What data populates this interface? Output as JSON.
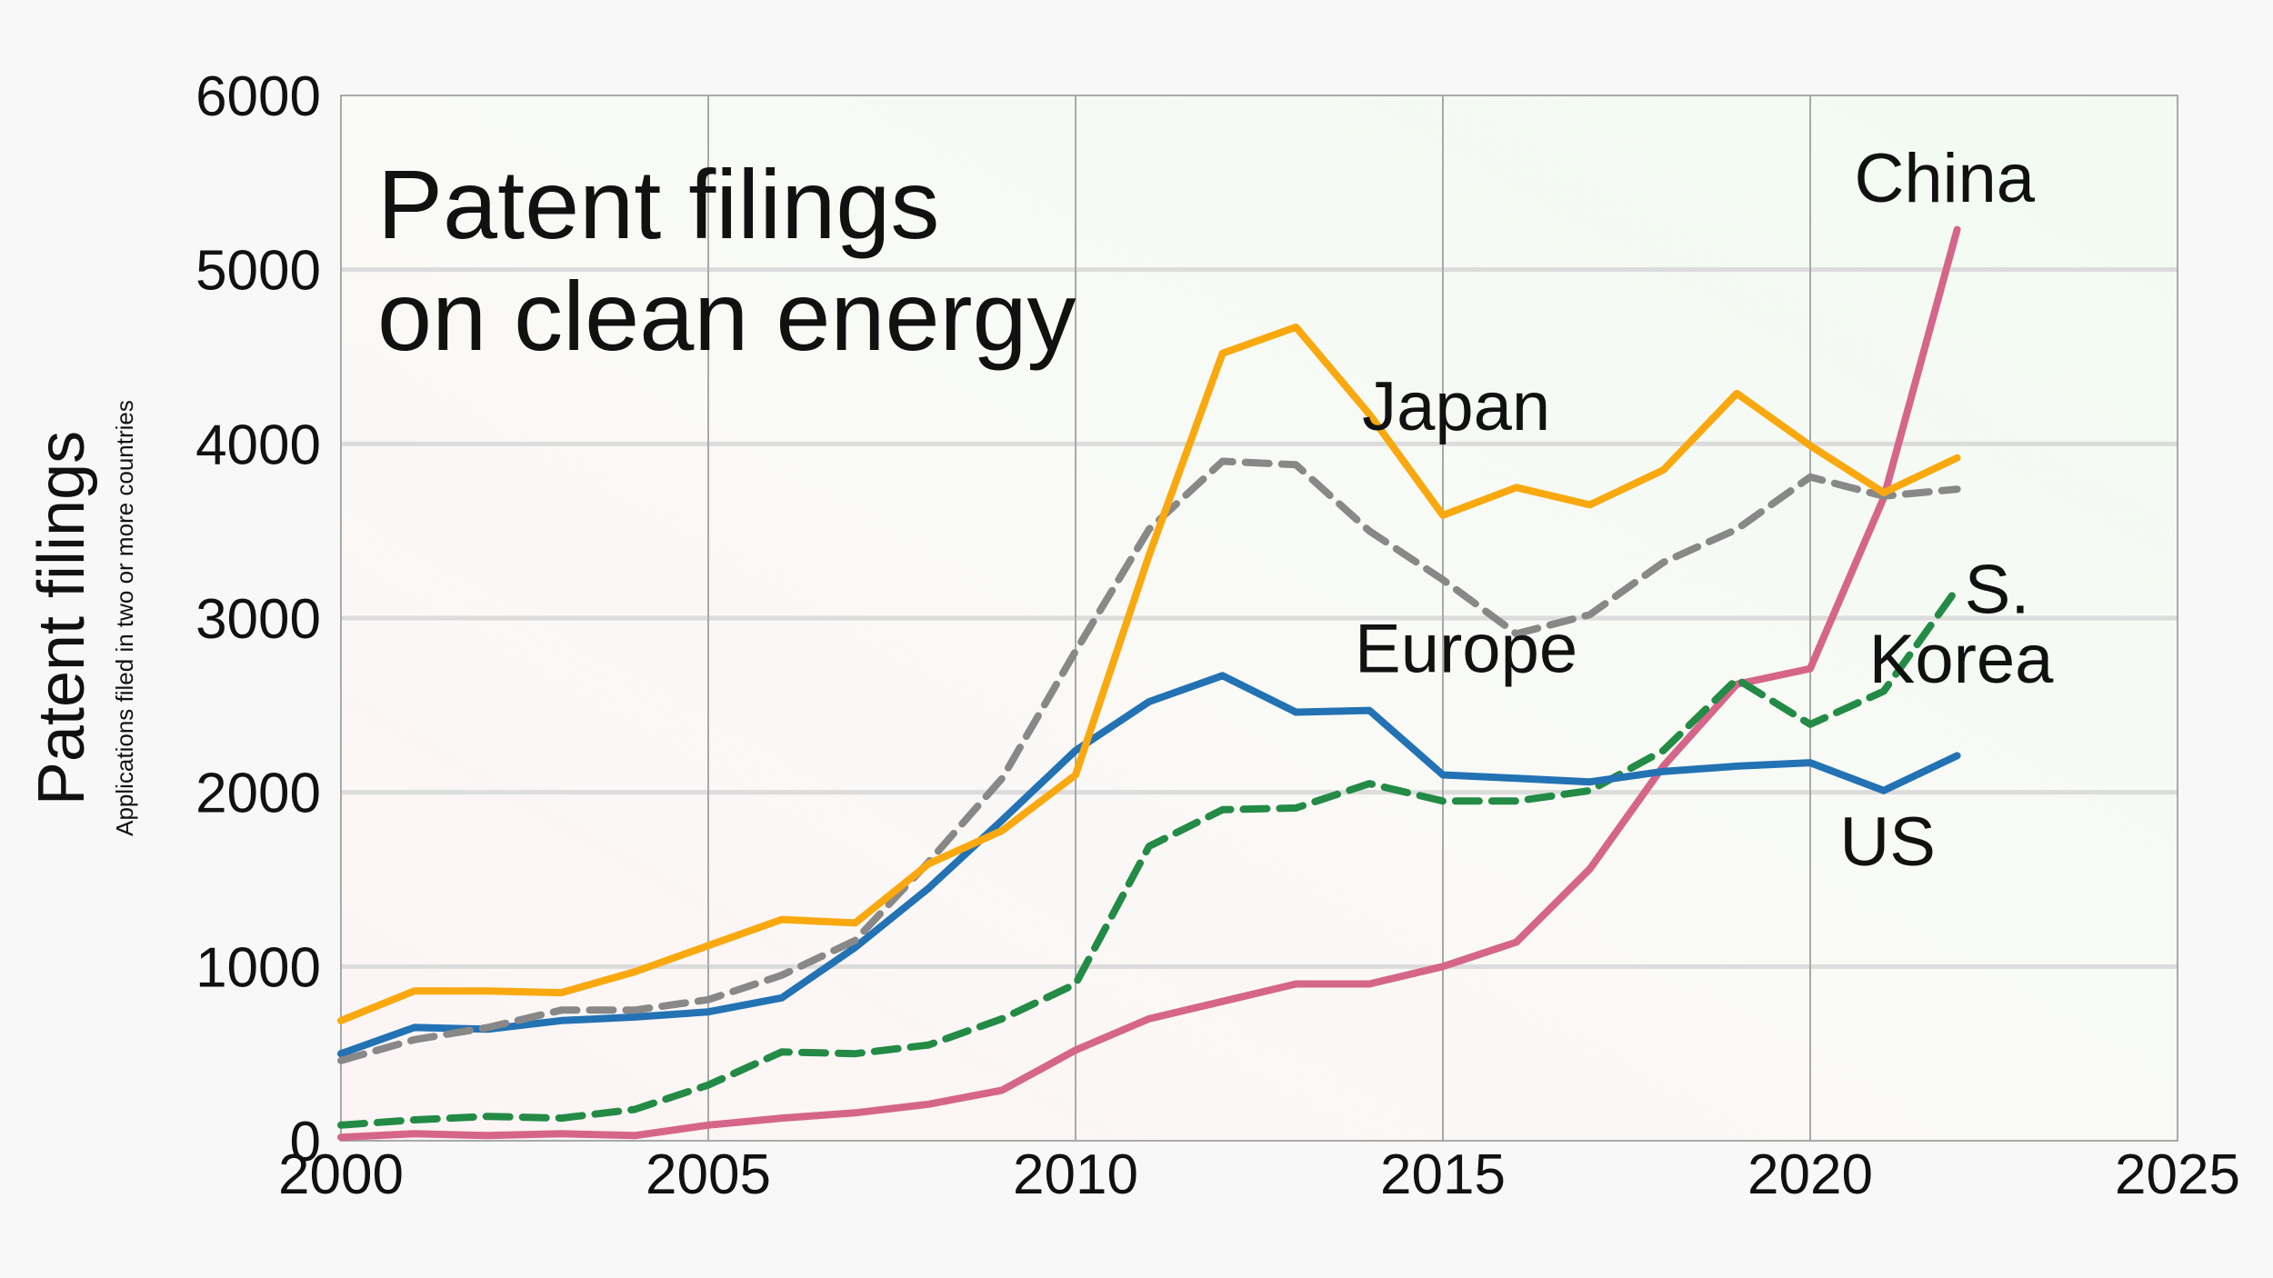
{
  "chart_data": {
    "type": "line",
    "title": [
      "Patent filings",
      "on clean energy"
    ],
    "ylabel": "Patent filings",
    "ylabel_sub": "Applications filed in two or more countries",
    "xlabel": "",
    "xlim": [
      2000,
      2025
    ],
    "ylim": [
      0,
      6000
    ],
    "x_ticks": [
      "2000",
      "2005",
      "2010",
      "2015",
      "2020",
      "2025"
    ],
    "y_ticks": [
      "0",
      "1000",
      "2000",
      "3000",
      "4000",
      "5000",
      "6000"
    ],
    "grid": true,
    "x": [
      2000,
      2001,
      2002,
      2003,
      2004,
      2005,
      2006,
      2007,
      2008,
      2009,
      2010,
      2011,
      2012,
      2013,
      2014,
      2015,
      2016,
      2017,
      2018,
      2019,
      2020,
      2021,
      2022
    ],
    "series": [
      {
        "name": "Japan",
        "color": "#f9a90f",
        "dash": false,
        "values": [
          690,
          860,
          860,
          850,
          970,
          1120,
          1270,
          1250,
          1590,
          1780,
          2100,
          3360,
          4520,
          4670,
          4170,
          3590,
          3750,
          3650,
          3850,
          4290,
          3990,
          3720,
          3920
        ]
      },
      {
        "name": "Europe",
        "color": "#888888",
        "dash": true,
        "values": [
          460,
          580,
          650,
          750,
          750,
          810,
          950,
          1150,
          1600,
          2080,
          2810,
          3510,
          3900,
          3880,
          3500,
          3220,
          2910,
          3020,
          3320,
          3510,
          3810,
          3700,
          3740
        ]
      },
      {
        "name": "US",
        "color": "#2272b4",
        "dash": false,
        "values": [
          500,
          650,
          640,
          690,
          710,
          740,
          820,
          1110,
          1450,
          1840,
          2240,
          2520,
          2670,
          2460,
          2470,
          2100,
          2080,
          2060,
          2120,
          2150,
          2170,
          2010,
          2210
        ]
      },
      {
        "name": "S. Korea",
        "color": "#238b45",
        "dash": true,
        "values": [
          90,
          120,
          140,
          130,
          180,
          320,
          510,
          500,
          550,
          700,
          900,
          1690,
          1900,
          1910,
          2050,
          1950,
          1950,
          2010,
          2240,
          2650,
          2390,
          2580,
          3170
        ]
      },
      {
        "name": "China",
        "color": "#d6658a",
        "dash": false,
        "values": [
          20,
          40,
          30,
          40,
          30,
          90,
          130,
          160,
          210,
          290,
          520,
          700,
          800,
          900,
          900,
          1000,
          1140,
          1560,
          2150,
          2620,
          2710,
          3690,
          5230
        ]
      }
    ],
    "annotations": [
      {
        "text": "Japan",
        "series": "Japan",
        "x": 2013.9,
        "y": 4080
      },
      {
        "text": "Europe",
        "series": "Europe",
        "x": 2013.8,
        "y": 2690
      },
      {
        "text": "US",
        "series": "US",
        "x": 2020.4,
        "y": 1580
      },
      {
        "text": "S.",
        "series": "S. Korea",
        "x": 2022.1,
        "y": 3030
      },
      {
        "text": "Korea",
        "series": "S. Korea",
        "x": 2020.8,
        "y": 2630
      },
      {
        "text": "China",
        "series": "China",
        "x": 2020.6,
        "y": 5390
      }
    ]
  }
}
